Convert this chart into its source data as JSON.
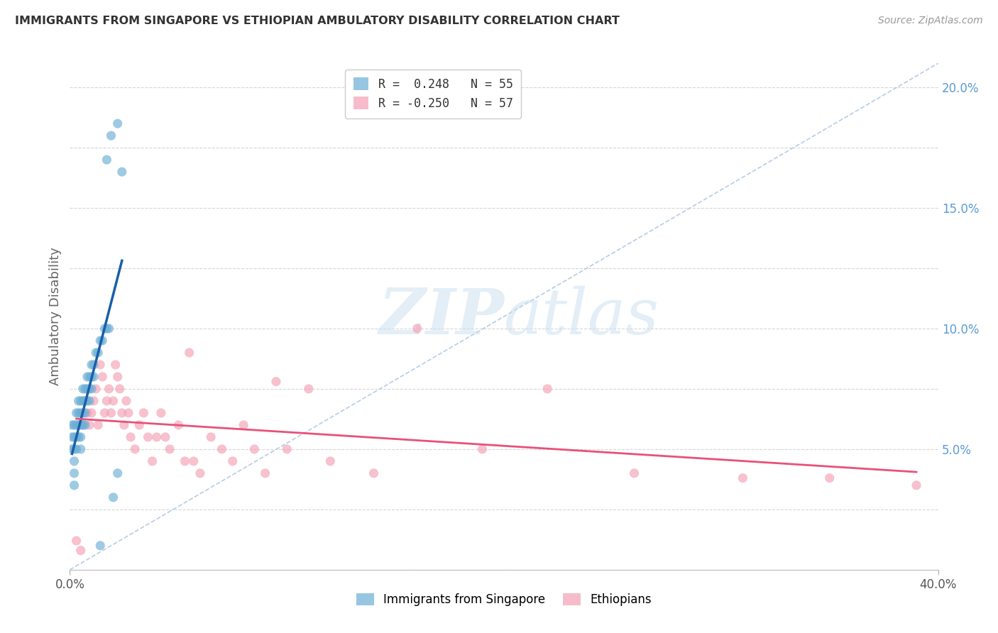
{
  "title": "IMMIGRANTS FROM SINGAPORE VS ETHIOPIAN AMBULATORY DISABILITY CORRELATION CHART",
  "source": "Source: ZipAtlas.com",
  "ylabel": "Ambulatory Disability",
  "xlim": [
    0.0,
    0.4
  ],
  "ylim": [
    0.0,
    0.21
  ],
  "legend_r1": "R =  0.248   N = 55",
  "legend_r2": "R = -0.250   N = 57",
  "singapore_color": "#6baed6",
  "ethiopian_color": "#f4a0b5",
  "singapore_line_color": "#1a5fa8",
  "ethiopian_line_color": "#e8517a",
  "diagonal_color": "#aac4e0",
  "sg_x": [
    0.001,
    0.001,
    0.001,
    0.002,
    0.002,
    0.002,
    0.002,
    0.002,
    0.002,
    0.003,
    0.003,
    0.003,
    0.003,
    0.004,
    0.004,
    0.004,
    0.004,
    0.005,
    0.005,
    0.005,
    0.005,
    0.005,
    0.006,
    0.006,
    0.006,
    0.006,
    0.007,
    0.007,
    0.007,
    0.007,
    0.008,
    0.008,
    0.008,
    0.009,
    0.009,
    0.009,
    0.01,
    0.01,
    0.01,
    0.011,
    0.011,
    0.012,
    0.013,
    0.014,
    0.015,
    0.016,
    0.017,
    0.018,
    0.02,
    0.022,
    0.017,
    0.019,
    0.022,
    0.024,
    0.014
  ],
  "sg_y": [
    0.06,
    0.055,
    0.05,
    0.06,
    0.055,
    0.05,
    0.045,
    0.04,
    0.035,
    0.065,
    0.06,
    0.055,
    0.05,
    0.07,
    0.065,
    0.06,
    0.055,
    0.07,
    0.065,
    0.06,
    0.055,
    0.05,
    0.075,
    0.07,
    0.065,
    0.06,
    0.075,
    0.07,
    0.065,
    0.06,
    0.08,
    0.075,
    0.07,
    0.08,
    0.075,
    0.07,
    0.085,
    0.08,
    0.075,
    0.085,
    0.08,
    0.09,
    0.09,
    0.095,
    0.095,
    0.1,
    0.1,
    0.1,
    0.03,
    0.04,
    0.17,
    0.18,
    0.185,
    0.165,
    0.01
  ],
  "eth_x": [
    0.003,
    0.006,
    0.007,
    0.008,
    0.009,
    0.01,
    0.011,
    0.012,
    0.013,
    0.014,
    0.015,
    0.016,
    0.017,
    0.018,
    0.019,
    0.02,
    0.021,
    0.022,
    0.023,
    0.024,
    0.025,
    0.026,
    0.027,
    0.028,
    0.03,
    0.032,
    0.034,
    0.036,
    0.038,
    0.04,
    0.042,
    0.044,
    0.046,
    0.05,
    0.053,
    0.057,
    0.06,
    0.065,
    0.07,
    0.075,
    0.08,
    0.085,
    0.09,
    0.1,
    0.11,
    0.12,
    0.14,
    0.16,
    0.19,
    0.22,
    0.005,
    0.26,
    0.31,
    0.35,
    0.39,
    0.055,
    0.095
  ],
  "eth_y": [
    0.012,
    0.06,
    0.07,
    0.065,
    0.06,
    0.065,
    0.07,
    0.075,
    0.06,
    0.085,
    0.08,
    0.065,
    0.07,
    0.075,
    0.065,
    0.07,
    0.085,
    0.08,
    0.075,
    0.065,
    0.06,
    0.07,
    0.065,
    0.055,
    0.05,
    0.06,
    0.065,
    0.055,
    0.045,
    0.055,
    0.065,
    0.055,
    0.05,
    0.06,
    0.045,
    0.045,
    0.04,
    0.055,
    0.05,
    0.045,
    0.06,
    0.05,
    0.04,
    0.05,
    0.075,
    0.045,
    0.04,
    0.1,
    0.05,
    0.075,
    0.008,
    0.04,
    0.038,
    0.038,
    0.035,
    0.09,
    0.078
  ]
}
